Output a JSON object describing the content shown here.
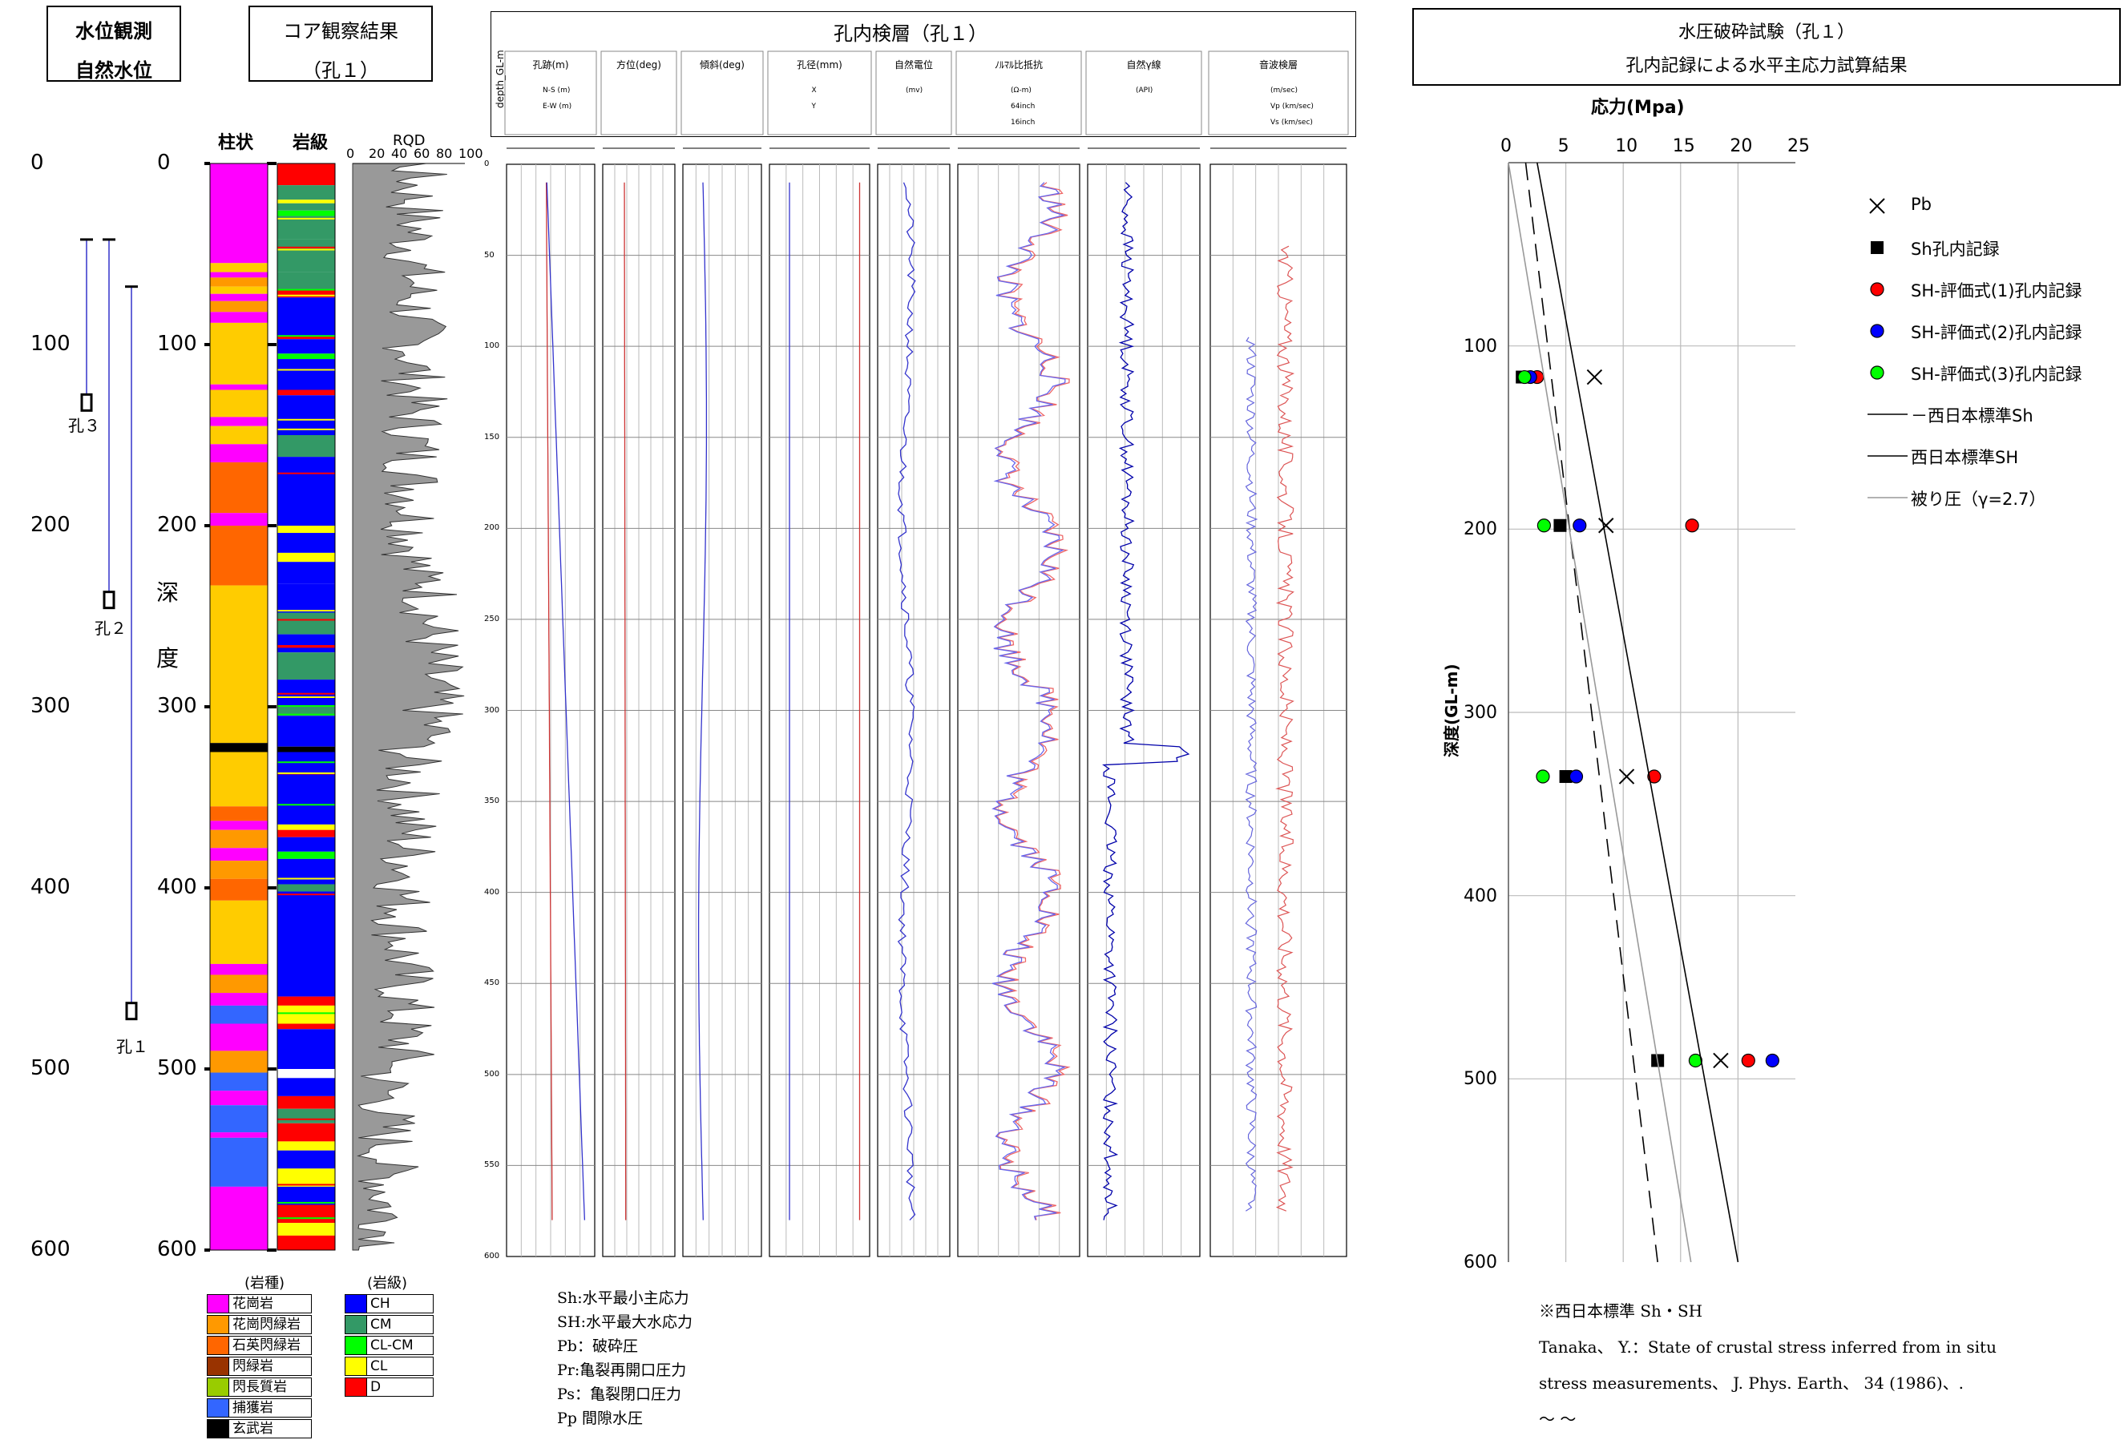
{
  "header": {
    "water_title_1": "水位観測",
    "water_title_2": "自然水位",
    "core_title_1": "コア観察結果",
    "core_title_2": "（孔１）",
    "log_title": "孔内検層（孔１）",
    "frac_title_1": "水圧破砕試験（孔１）",
    "frac_title_2": "孔内記録による水平主応力試算結果"
  },
  "depth_axis": {
    "ticks": [
      "0",
      "100",
      "200",
      "300",
      "400",
      "500",
      "600"
    ],
    "label_chars": [
      "深",
      "度"
    ]
  },
  "water": {
    "holes": [
      {
        "name": "孔３",
        "top": 42,
        "bottom": 132
      },
      {
        "name": "孔２",
        "top": 42,
        "bottom": 241
      },
      {
        "name": "孔１",
        "top": 68,
        "bottom": 468
      }
    ]
  },
  "core": {
    "col_labels": [
      "柱状",
      "岩級",
      "RQD"
    ],
    "rqd_ticks": [
      "0",
      "20",
      "40",
      "60",
      "80",
      "100"
    ],
    "rock_legend_title": "(岩種)",
    "rock_legend": [
      {
        "label": "花崗岩",
        "color": "#ff00ff"
      },
      {
        "label": "花崗閃緑岩",
        "color": "#ff9900"
      },
      {
        "label": "石英閃緑岩",
        "color": "#ff6600"
      },
      {
        "label": "閃緑岩",
        "color": "#993300"
      },
      {
        "label": "閃長質岩",
        "color": "#99cc00"
      },
      {
        "label": "捕獲岩",
        "color": "#3366ff"
      },
      {
        "label": "玄武岩",
        "color": "#000000"
      }
    ],
    "grade_legend_title": "(岩級)",
    "grade_legend": [
      {
        "label": "CH",
        "color": "#0000ff"
      },
      {
        "label": "CM",
        "color": "#339966"
      },
      {
        "label": "CL-CM",
        "color": "#00ff00"
      },
      {
        "label": "CL",
        "color": "#ffff00"
      },
      {
        "label": "D",
        "color": "#ff0000"
      }
    ]
  },
  "logging": {
    "depth_label": "depth_GL-m",
    "tracks": [
      {
        "title": "孔跡(m)",
        "sub": [
          "N-S (m)",
          "E-W (m)"
        ]
      },
      {
        "title": "方位(deg)",
        "sub": []
      },
      {
        "title": "傾斜(deg)",
        "sub": []
      },
      {
        "title": "孔径(mm)",
        "sub": [
          "X",
          "Y"
        ]
      },
      {
        "title": "自然電位",
        "sub": [
          "(mv)"
        ]
      },
      {
        "title": "ﾉﾙﾏﾙ比抵抗",
        "sub": [
          "(Ω-m)",
          "64inch",
          "16inch"
        ]
      },
      {
        "title": "自然γ線",
        "sub": [
          "(API)"
        ]
      },
      {
        "title": "音波検層",
        "sub": [
          "(m/sec)",
          "Vp (km/sec)",
          "Vs (km/sec)"
        ]
      }
    ],
    "depth_ticks": [
      "0",
      "50",
      "100",
      "150",
      "200",
      "250",
      "300",
      "350",
      "400",
      "450",
      "500",
      "550",
      "600"
    ],
    "notes": [
      "Sh:水平最小主応力",
      "SH:水平最大水応力",
      "Pb：破砕圧",
      "Pr:亀裂再開口圧力",
      "Ps：亀裂閉口圧力",
      "Pp 間隙水圧"
    ]
  },
  "chart_data": {
    "type": "scatter",
    "title": "水圧破砕試験（孔１） 孔内記録による水平主応力試算結果",
    "xlabel": "応力(Mpa)",
    "ylabel": "深度(GL-m)",
    "xlim": [
      0,
      25
    ],
    "ylim": [
      600,
      0
    ],
    "xticks": [
      "0",
      "5",
      "10",
      "15",
      "20",
      "25"
    ],
    "yticks": [
      "100",
      "200",
      "300",
      "400",
      "500",
      "600"
    ],
    "grid": true,
    "legend_position": "right",
    "series": [
      {
        "name": "Pb",
        "marker": "x",
        "color": "#000000",
        "points": [
          [
            7.5,
            117
          ],
          [
            8.5,
            198
          ],
          [
            10.3,
            335
          ],
          [
            18.5,
            490
          ]
        ]
      },
      {
        "name": "Sh孔内記録",
        "marker": "square",
        "color": "#000000",
        "points": [
          [
            1.2,
            117
          ],
          [
            4.5,
            198
          ],
          [
            5.0,
            335
          ],
          [
            13.0,
            490
          ]
        ]
      },
      {
        "name": "SH-評価式(1)孔内記録",
        "marker": "circle",
        "color": "#ff0000",
        "points": [
          [
            2.5,
            117
          ],
          [
            16.0,
            198
          ],
          [
            12.7,
            335
          ],
          [
            20.9,
            490
          ]
        ]
      },
      {
        "name": "SH-評価式(2)孔内記録",
        "marker": "circle",
        "color": "#0000ff",
        "points": [
          [
            1.9,
            117
          ],
          [
            6.2,
            198
          ],
          [
            5.9,
            335
          ],
          [
            23.0,
            490
          ]
        ]
      },
      {
        "name": "SH-評価式(3)孔内記録",
        "marker": "circle",
        "color": "#00ff00",
        "points": [
          [
            1.4,
            117
          ],
          [
            3.1,
            198
          ],
          [
            3.0,
            335
          ],
          [
            16.3,
            490
          ]
        ]
      },
      {
        "name": "－西日本標準Sh",
        "line": "dashed",
        "color": "#000000",
        "points": [
          [
            1.5,
            0
          ],
          [
            13.0,
            600
          ]
        ]
      },
      {
        "name": "西日本標準SH",
        "line": "solid",
        "color": "#000000",
        "points": [
          [
            2.5,
            0
          ],
          [
            20.0,
            600
          ]
        ]
      },
      {
        "name": "被り圧（γ=2.7）",
        "line": "solid",
        "color": "#999999",
        "points": [
          [
            0,
            0
          ],
          [
            15.9,
            600
          ]
        ]
      }
    ],
    "notes": [
      "※西日本標準 Sh・SH",
      "Tanaka、 Y.：State of crustal stress inferred from in situ",
      "stress measurements、 J. Phys. Earth、 34 (1986)、.",
      "～ ～"
    ]
  }
}
